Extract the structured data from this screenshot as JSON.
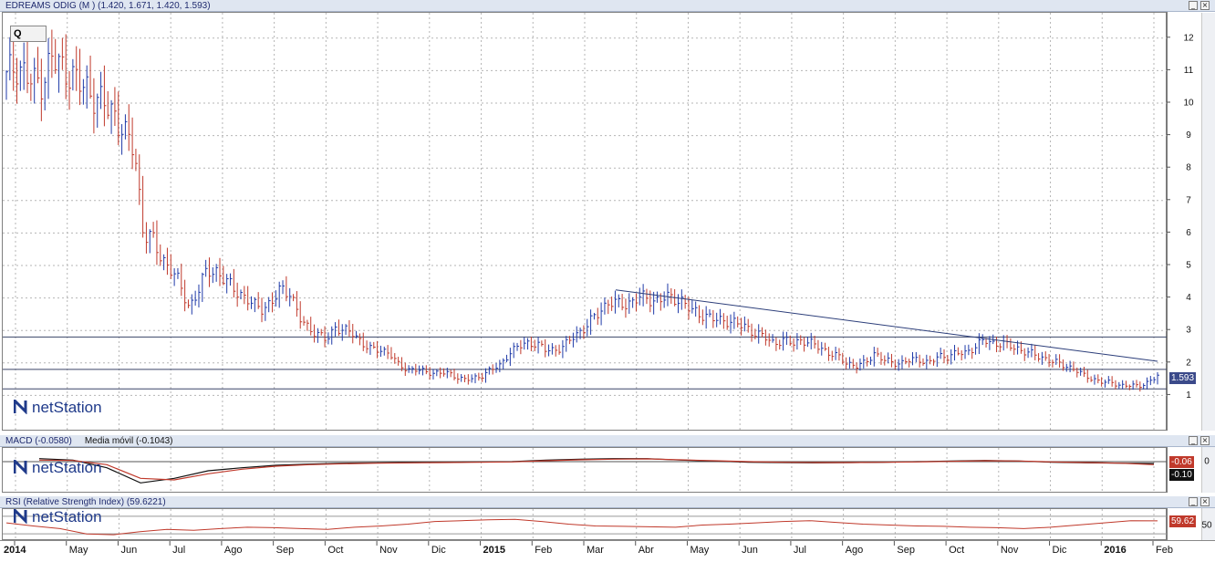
{
  "panels": {
    "price_title": "EDREAMS ODIG (M ) (1.420, 1.671, 1.420, 1.593)",
    "macd_title": "MACD (-0.0580)",
    "macd_ma_title": "Media móvil (-0.1043)",
    "rsi_title": "RSI (Relative Strength Index) (59.6221)"
  },
  "toolbar": {
    "period_label": "Q"
  },
  "logo": {
    "text": "netStation"
  },
  "value_boxes": {
    "price": "1.593",
    "macd": "-0.06",
    "macd_signal": "-0.10",
    "rsi": "59.62"
  },
  "icons": [
    "minimize-icon",
    "close-icon",
    "netstation-logo-icon"
  ],
  "colors": {
    "up_bar": "#1f3aa8",
    "down_bar": "#c0392b",
    "trend": "#2c3e7a",
    "macd_line": "#111111",
    "signal_line": "#c0392b",
    "rsi_line": "#c0392b",
    "price_box": "#3b4a8a"
  },
  "chart_data": [
    {
      "type": "ohlc",
      "name": "EDREAMS ODIG",
      "y_ticks": [
        1,
        2,
        3,
        4,
        5,
        6,
        7,
        8,
        9,
        10,
        11,
        12
      ],
      "ylim": [
        0,
        12.5
      ],
      "x_labels": [
        "2014",
        "May",
        "Jun",
        "Jul",
        "Ago",
        "Sep",
        "Oct",
        "Nov",
        "Dic",
        "2015",
        "Feb",
        "Mar",
        "Abr",
        "May",
        "Jun",
        "Jul",
        "Ago",
        "Sep",
        "Oct",
        "Nov",
        "Dic",
        "2016",
        "Feb"
      ],
      "grid": true,
      "horizontal_levels": [
        2.8,
        1.8,
        1.2
      ],
      "trendline": {
        "start": [
          "Abr 2015",
          4.25
        ],
        "end": [
          "Feb 2016",
          2.05
        ]
      },
      "close_series": [
        10.8,
        11.2,
        10.9,
        10.6,
        10.7,
        11.4,
        11.1,
        10.9,
        10.6,
        10.4,
        10.1,
        9.9,
        9.6,
        9.0,
        8.6,
        6.0,
        5.8,
        5.2,
        4.9,
        4.4,
        3.7,
        4.2,
        4.9,
        4.8,
        4.5,
        4.3,
        4.0,
        3.8,
        3.7,
        3.8,
        4.3,
        4.2,
        3.4,
        3.1,
        2.9,
        2.7,
        3.1,
        3.0,
        2.9,
        2.6,
        2.4,
        2.4,
        2.3,
        1.9,
        1.8,
        1.8,
        1.7,
        1.7,
        1.7,
        1.6,
        1.5,
        1.5,
        1.6,
        1.8,
        1.9,
        2.3,
        2.5,
        2.6,
        2.6,
        2.4,
        2.4,
        2.5,
        2.8,
        3.0,
        3.3,
        3.6,
        3.9,
        3.8,
        3.8,
        4.0,
        4.0,
        3.9,
        4.0,
        4.0,
        3.9,
        3.6,
        3.5,
        3.4,
        3.3,
        3.3,
        3.2,
        3.1,
        2.9,
        2.8,
        2.6,
        2.7,
        2.6,
        2.7,
        2.6,
        2.5,
        2.3,
        2.2,
        2.0,
        1.9,
        2.0,
        2.3,
        2.1,
        2.0,
        2.0,
        2.1,
        2.1,
        2.0,
        2.2,
        2.2,
        2.3,
        2.3,
        2.5,
        2.7,
        2.6,
        2.6,
        2.5,
        2.4,
        2.3,
        2.2,
        2.1,
        2.0,
        1.9,
        1.8,
        1.6,
        1.5,
        1.4,
        1.4,
        1.3,
        1.3,
        1.3,
        1.4,
        1.6
      ]
    },
    {
      "type": "line",
      "name": "MACD",
      "y_ticks": [
        0
      ],
      "ylim": [
        -0.9,
        0.3
      ],
      "series": [
        {
          "name": "MACD",
          "values": [
            0.1,
            0.05,
            -0.2,
            -0.7,
            -0.55,
            -0.3,
            -0.2,
            -0.12,
            -0.08,
            -0.05,
            -0.04,
            -0.03,
            -0.02,
            -0.01,
            0.0,
            0.05,
            0.08,
            0.1,
            0.1,
            0.05,
            0.02,
            -0.02,
            -0.03,
            -0.04,
            -0.03,
            -0.02,
            0.0,
            0.02,
            0.04,
            0.02,
            -0.02,
            -0.04,
            -0.05,
            -0.06
          ]
        },
        {
          "name": "Media móvil",
          "values": [
            0.05,
            0.04,
            -0.1,
            -0.55,
            -0.6,
            -0.4,
            -0.25,
            -0.15,
            -0.1,
            -0.07,
            -0.05,
            -0.04,
            -0.03,
            -0.02,
            -0.01,
            0.03,
            0.06,
            0.08,
            0.09,
            0.06,
            0.03,
            0.0,
            -0.02,
            -0.03,
            -0.03,
            -0.02,
            -0.01,
            0.01,
            0.03,
            0.02,
            -0.01,
            -0.03,
            -0.05,
            -0.1
          ]
        }
      ]
    },
    {
      "type": "line",
      "name": "RSI",
      "y_ticks": [
        50
      ],
      "ylim": [
        20,
        80
      ],
      "series": [
        {
          "name": "RSI",
          "values": [
            55,
            48,
            42,
            30,
            28,
            35,
            40,
            38,
            42,
            45,
            44,
            42,
            40,
            45,
            48,
            52,
            58,
            60,
            62,
            63,
            58,
            52,
            48,
            47,
            46,
            45,
            50,
            52,
            55,
            58,
            60,
            56,
            52,
            50,
            48,
            47,
            45,
            44,
            42,
            45,
            50,
            55,
            60,
            59.6
          ]
        }
      ]
    }
  ]
}
